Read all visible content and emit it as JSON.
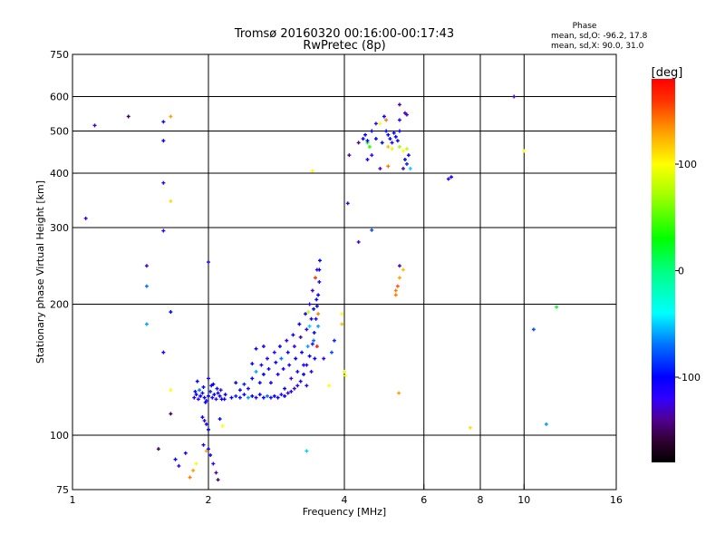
{
  "chart_data": {
    "type": "scatter",
    "title": "Tromsø 20160320 00:16:00-00:17:43",
    "subtitle": "RwPretec (8p)",
    "xlabel": "Frequency [MHz]",
    "ylabel": "Stationary phase Virtual Height [km]",
    "xscale": "log2",
    "yscale": "log",
    "xlim": [
      1,
      16
    ],
    "ylim": [
      75,
      750
    ],
    "xticks": [
      1,
      2,
      4,
      6,
      8,
      10,
      16
    ],
    "xtick_labels": [
      "1",
      "2",
      "4",
      "6",
      "8",
      "10",
      "16"
    ],
    "xgrid": [
      2,
      4,
      6,
      8,
      10
    ],
    "yticks": [
      75,
      100,
      200,
      300,
      400,
      500,
      600,
      750
    ],
    "ytick_labels": [
      "75",
      "100",
      "200",
      "300",
      "400",
      "500",
      "600",
      "750"
    ],
    "ygrid": [
      100,
      200,
      300,
      400,
      500,
      600
    ],
    "grid": true,
    "stats": {
      "heading": "Phase",
      "line_o": "mean, sd,O: -96.2, 17.8",
      "line_x": "mean, sd,X:  90.0, 31.0"
    },
    "colorbar": {
      "label": "[deg]",
      "range": [
        -180,
        180
      ],
      "ticks": [
        100,
        0,
        -100
      ],
      "tick_labels": [
        "100",
        "0",
        "-100"
      ],
      "stops": [
        [
          -180,
          "#000000"
        ],
        [
          -160,
          "#300030"
        ],
        [
          -140,
          "#500090"
        ],
        [
          -120,
          "#3000ff"
        ],
        [
          -100,
          "#0000ff"
        ],
        [
          -70,
          "#0070ff"
        ],
        [
          -40,
          "#00ffff"
        ],
        [
          0,
          "#00ff80"
        ],
        [
          30,
          "#00ff00"
        ],
        [
          70,
          "#a0ff00"
        ],
        [
          100,
          "#ffff00"
        ],
        [
          130,
          "#ffa000"
        ],
        [
          160,
          "#ff3000"
        ],
        [
          180,
          "#ff0000"
        ]
      ]
    },
    "point_fields": [
      "frequency_mhz",
      "height_km",
      "phase_deg"
    ],
    "points": [
      [
        1.12,
        515,
        -130
      ],
      [
        1.33,
        540,
        -150
      ],
      [
        1.07,
        315,
        -130
      ],
      [
        1.59,
        525,
        -110
      ],
      [
        1.65,
        540,
        130
      ],
      [
        1.59,
        475,
        -100
      ],
      [
        1.59,
        380,
        -120
      ],
      [
        1.65,
        345,
        110
      ],
      [
        1.59,
        295,
        -120
      ],
      [
        1.46,
        245,
        -130
      ],
      [
        1.46,
        220,
        -70
      ],
      [
        1.46,
        180,
        -60
      ],
      [
        1.65,
        192,
        -100
      ],
      [
        1.59,
        155,
        -110
      ],
      [
        1.65,
        127,
        100
      ],
      [
        1.65,
        112,
        -150
      ],
      [
        1.55,
        93,
        -150
      ],
      [
        1.69,
        88,
        -100
      ],
      [
        1.72,
        85,
        -120
      ],
      [
        1.78,
        91,
        -110
      ],
      [
        2.0,
        250,
        -120
      ],
      [
        1.95,
        95,
        -110
      ],
      [
        1.98,
        92,
        130
      ],
      [
        2.02,
        90,
        -110
      ],
      [
        1.88,
        86,
        100
      ],
      [
        1.85,
        83,
        130
      ],
      [
        1.82,
        80,
        140
      ],
      [
        2.05,
        86,
        -120
      ],
      [
        2.08,
        82,
        -140
      ],
      [
        2.1,
        79,
        -150
      ],
      [
        2.0,
        93,
        -100
      ],
      [
        2.15,
        105,
        100
      ],
      [
        2.0,
        103,
        -100
      ],
      [
        1.98,
        106,
        -110
      ],
      [
        1.96,
        108,
        -120
      ],
      [
        1.94,
        110,
        -100
      ],
      [
        2.12,
        109,
        -100
      ],
      [
        1.86,
        122,
        -110
      ],
      [
        1.88,
        124,
        -100
      ],
      [
        1.9,
        121,
        -120
      ],
      [
        1.92,
        123,
        -100
      ],
      [
        1.94,
        125,
        -110
      ],
      [
        1.96,
        122,
        -100
      ],
      [
        1.98,
        120,
        -120
      ],
      [
        2.0,
        123,
        -100
      ],
      [
        2.02,
        126,
        -90
      ],
      [
        2.04,
        122,
        -110
      ],
      [
        2.06,
        124,
        -100
      ],
      [
        2.08,
        121,
        -120
      ],
      [
        2.1,
        125,
        -100
      ],
      [
        2.12,
        123,
        -110
      ],
      [
        2.14,
        121,
        -100
      ],
      [
        1.87,
        126,
        -100
      ],
      [
        1.91,
        127,
        -70
      ],
      [
        1.95,
        129,
        -100
      ],
      [
        2.03,
        130,
        -110
      ],
      [
        2.09,
        128,
        -100
      ],
      [
        2.13,
        127,
        -120
      ],
      [
        1.89,
        133,
        -100
      ],
      [
        2.05,
        131,
        -100
      ],
      [
        2.18,
        124,
        -100
      ],
      [
        2.17,
        121,
        -110
      ],
      [
        2.0,
        135,
        -110
      ],
      [
        1.97,
        119,
        -100
      ],
      [
        2.25,
        122,
        -100
      ],
      [
        2.3,
        123,
        -90
      ],
      [
        2.35,
        122,
        -110
      ],
      [
        2.4,
        124,
        -100
      ],
      [
        2.45,
        122,
        -60
      ],
      [
        2.5,
        123,
        -100
      ],
      [
        2.55,
        122,
        -110
      ],
      [
        2.6,
        124,
        -100
      ],
      [
        2.65,
        122,
        -100
      ],
      [
        2.7,
        123,
        -70
      ],
      [
        2.75,
        122,
        -110
      ],
      [
        2.8,
        123,
        -100
      ],
      [
        2.85,
        122,
        -100
      ],
      [
        2.9,
        124,
        -120
      ],
      [
        2.95,
        123,
        -100
      ],
      [
        3.0,
        125,
        -130
      ],
      [
        3.05,
        126,
        -110
      ],
      [
        3.1,
        128,
        -130
      ],
      [
        3.15,
        130,
        -120
      ],
      [
        3.2,
        133,
        -110
      ],
      [
        3.25,
        138,
        -100
      ],
      [
        3.3,
        145,
        -110
      ],
      [
        3.35,
        152,
        -100
      ],
      [
        3.4,
        162,
        -120
      ],
      [
        3.43,
        172,
        -100
      ],
      [
        3.46,
        185,
        -110
      ],
      [
        3.48,
        198,
        -100
      ],
      [
        3.5,
        210,
        -100
      ],
      [
        3.52,
        225,
        -110
      ],
      [
        3.52,
        240,
        -100
      ],
      [
        3.53,
        252,
        -100
      ],
      [
        2.35,
        127,
        -100
      ],
      [
        2.4,
        131,
        -90
      ],
      [
        2.45,
        128,
        -110
      ],
      [
        2.5,
        135,
        -100
      ],
      [
        2.55,
        140,
        -60
      ],
      [
        2.6,
        132,
        -100
      ],
      [
        2.62,
        145,
        -110
      ],
      [
        2.65,
        138,
        -100
      ],
      [
        2.7,
        150,
        -120
      ],
      [
        2.72,
        142,
        -100
      ],
      [
        2.75,
        132,
        -100
      ],
      [
        2.8,
        155,
        -120
      ],
      [
        2.82,
        147,
        -100
      ],
      [
        2.85,
        138,
        -110
      ],
      [
        2.88,
        160,
        -100
      ],
      [
        2.9,
        150,
        -70
      ],
      [
        2.93,
        142,
        -100
      ],
      [
        2.95,
        128,
        -100
      ],
      [
        2.98,
        165,
        -120
      ],
      [
        3.0,
        155,
        -100
      ],
      [
        3.02,
        145,
        -110
      ],
      [
        3.05,
        135,
        -130
      ],
      [
        3.08,
        170,
        -100
      ],
      [
        3.1,
        160,
        -120
      ],
      [
        3.12,
        150,
        -100
      ],
      [
        3.15,
        140,
        -110
      ],
      [
        3.18,
        180,
        -100
      ],
      [
        3.2,
        168,
        -130
      ],
      [
        3.22,
        155,
        -100
      ],
      [
        3.25,
        145,
        -110
      ],
      [
        3.28,
        190,
        -100
      ],
      [
        3.3,
        175,
        -120
      ],
      [
        3.32,
        160,
        -60
      ],
      [
        3.35,
        200,
        -110
      ],
      [
        3.38,
        185,
        -100
      ],
      [
        3.4,
        215,
        -130
      ],
      [
        3.42,
        195,
        -100
      ],
      [
        3.45,
        230,
        160
      ],
      [
        3.47,
        205,
        -100
      ],
      [
        3.48,
        240,
        -120
      ],
      [
        3.5,
        178,
        -60
      ],
      [
        3.44,
        150,
        -100
      ],
      [
        3.38,
        140,
        -110
      ],
      [
        3.3,
        130,
        -120
      ],
      [
        2.55,
        158,
        -100
      ],
      [
        2.65,
        160,
        -110
      ],
      [
        2.3,
        132,
        -100
      ],
      [
        2.5,
        146,
        -100
      ],
      [
        3.35,
        178,
        -50
      ],
      [
        3.5,
        190,
        140
      ],
      [
        3.42,
        165,
        -70
      ],
      [
        3.48,
        160,
        170
      ],
      [
        3.33,
        192,
        80
      ],
      [
        4.1,
        440,
        -140
      ],
      [
        4.3,
        470,
        -140
      ],
      [
        4.4,
        480,
        -100
      ],
      [
        4.45,
        490,
        -100
      ],
      [
        4.5,
        470,
        30
      ],
      [
        4.5,
        475,
        -100
      ],
      [
        4.6,
        500,
        -100
      ],
      [
        4.55,
        460,
        40
      ],
      [
        4.7,
        480,
        -100
      ],
      [
        4.8,
        520,
        100
      ],
      [
        4.85,
        470,
        -100
      ],
      [
        4.9,
        540,
        -100
      ],
      [
        4.95,
        500,
        -100
      ],
      [
        5.0,
        490,
        -100
      ],
      [
        5.05,
        480,
        -100
      ],
      [
        5.1,
        470,
        -110
      ],
      [
        5.15,
        495,
        -100
      ],
      [
        5.2,
        485,
        -100
      ],
      [
        5.25,
        475,
        -100
      ],
      [
        5.3,
        500,
        -100
      ],
      [
        5.0,
        460,
        120
      ],
      [
        5.1,
        455,
        90
      ],
      [
        5.3,
        460,
        70
      ],
      [
        5.4,
        450,
        100
      ],
      [
        5.5,
        455,
        80
      ],
      [
        5.45,
        430,
        -100
      ],
      [
        5.5,
        420,
        -90
      ],
      [
        5.55,
        440,
        -100
      ],
      [
        5.6,
        410,
        -50
      ],
      [
        5.4,
        410,
        -130
      ],
      [
        5.0,
        415,
        140
      ],
      [
        4.8,
        410,
        -130
      ],
      [
        5.5,
        545,
        -130
      ],
      [
        5.45,
        550,
        -130
      ],
      [
        5.3,
        575,
        -140
      ],
      [
        5.3,
        530,
        -120
      ],
      [
        4.95,
        530,
        140
      ],
      [
        4.6,
        440,
        -120
      ],
      [
        4.5,
        430,
        -110
      ],
      [
        4.7,
        520,
        -120
      ],
      [
        4.07,
        341,
        -120
      ],
      [
        4.3,
        278,
        -130
      ],
      [
        4.6,
        296,
        -80
      ],
      [
        5.3,
        245,
        -130
      ],
      [
        5.4,
        240,
        120
      ],
      [
        5.3,
        230,
        130
      ],
      [
        5.2,
        215,
        140
      ],
      [
        5.25,
        220,
        150
      ],
      [
        5.2,
        210,
        140
      ],
      [
        5.28,
        125,
        130
      ],
      [
        6.8,
        388,
        -110
      ],
      [
        6.9,
        392,
        -110
      ],
      [
        7.6,
        104,
        110
      ],
      [
        9.5,
        600,
        -130
      ],
      [
        10.0,
        450,
        100
      ],
      [
        10.5,
        175,
        -80
      ],
      [
        11.2,
        106,
        -60
      ],
      [
        11.8,
        197,
        20
      ],
      [
        3.4,
        405,
        100
      ],
      [
        3.3,
        92,
        -50
      ],
      [
        4.0,
        140,
        90
      ],
      [
        4.02,
        137,
        100
      ],
      [
        3.7,
        130,
        100
      ],
      [
        3.95,
        190,
        100
      ],
      [
        3.95,
        180,
        120
      ],
      [
        3.8,
        165,
        -90
      ],
      [
        3.75,
        155,
        -80
      ],
      [
        3.6,
        150,
        -120
      ]
    ]
  }
}
